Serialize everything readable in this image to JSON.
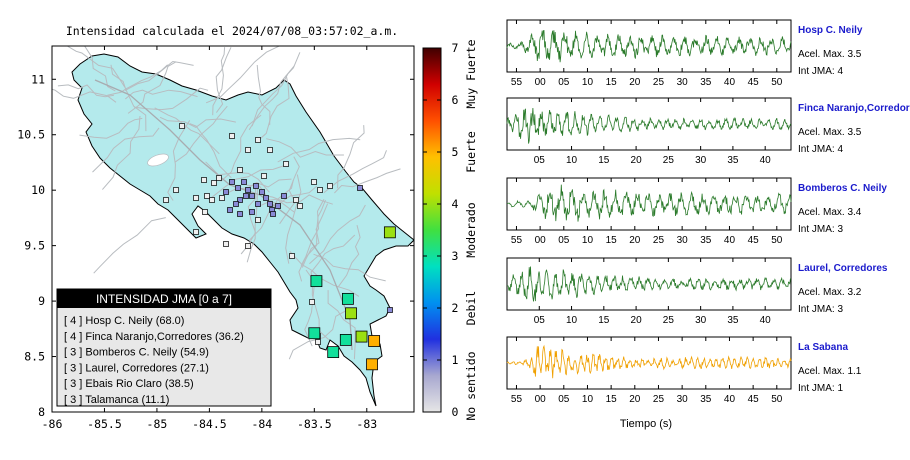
{
  "title": "Intensidad calculada el 2024/07/08_03:57:02_a.m.",
  "map": {
    "x_ticks": [
      "-86",
      "-85.5",
      "-85",
      "-84.5",
      "-84",
      "-83.5",
      "-83"
    ],
    "x_tick_values": [
      -86,
      -85.5,
      -85,
      -84.5,
      -84,
      -83.5,
      -83
    ],
    "y_ticks": [
      "11",
      "10.5",
      "10",
      "9.5",
      "9",
      "8.5",
      "8"
    ],
    "y_tick_values": [
      11,
      10.5,
      10,
      9.5,
      9,
      8.5,
      8
    ],
    "xlim": [
      -86,
      -82.55
    ],
    "ylim": [
      8,
      11.3
    ],
    "colors": {
      "land": "#b4eaec",
      "border": "#000000",
      "roads": "#b8bcc0"
    },
    "stations_big": [
      {
        "lon": -82.78,
        "lat": 9.62,
        "int": 4
      },
      {
        "lon": -83.48,
        "lat": 9.18,
        "int": 3
      },
      {
        "lon": -83.18,
        "lat": 9.02,
        "int": 3
      },
      {
        "lon": -83.15,
        "lat": 8.89,
        "int": 4
      },
      {
        "lon": -83.5,
        "lat": 8.71,
        "int": 3
      },
      {
        "lon": -83.2,
        "lat": 8.65,
        "int": 3
      },
      {
        "lon": -83.05,
        "lat": 8.68,
        "int": 4
      },
      {
        "lon": -82.93,
        "lat": 8.64,
        "int": 5
      },
      {
        "lon": -83.32,
        "lat": 8.54,
        "int": 3
      },
      {
        "lon": -82.95,
        "lat": 8.43,
        "int": 5
      }
    ]
  },
  "colorbar": {
    "min": 0,
    "max": 7,
    "ticks": [
      "0",
      "1",
      "2",
      "3",
      "4",
      "5",
      "6",
      "7"
    ],
    "labels": [
      "No sentido",
      "Debil",
      "Moderado",
      "Fuerte",
      "Muy Fuerte"
    ],
    "label_positions": [
      0.5,
      2.0,
      3.5,
      5.0,
      6.5
    ],
    "colors": [
      "#e6e6e6",
      "#a8a8d0",
      "#2030e0",
      "#0090f0",
      "#00e0c0",
      "#40e040",
      "#c0e000",
      "#ffc000",
      "#ff5000",
      "#d00000",
      "#400000"
    ]
  },
  "legend": {
    "title": "INTENSIDAD JMA [0 a 7]",
    "items": [
      {
        "text": "[ 4 ]  Hosp C. Neily (68.0)"
      },
      {
        "text": "[ 4 ]  Finca Naranjo,Corredores (36.2)"
      },
      {
        "text": "[ 3 ]  Bomberos C. Neily (54.9)"
      },
      {
        "text": "[ 3 ]  Laurel, Corredores (27.1)"
      },
      {
        "text": "[ 3 ]  Ebais Rio Claro (38.5)"
      },
      {
        "text": "[ 3 ]  Talamanca (11.1)"
      }
    ]
  },
  "chart_data": {
    "type": "line",
    "xlabel": "Tiempo (s)",
    "waveforms": [
      {
        "station": "Hosp C. Neily",
        "accel": "Acel. Max. 3.5",
        "int": "Int JMA: 4",
        "color": "#2a7a2a",
        "ticks": [
          "55",
          "00",
          "05",
          "10",
          "15",
          "20",
          "25",
          "30",
          "35",
          "40",
          "45",
          "50"
        ],
        "t0": -7,
        "t1": 53,
        "tick_start": -5,
        "peak_t": 0,
        "amp": 0.75,
        "dense": false
      },
      {
        "station": "Finca Naranjo,Corredores",
        "accel": "Acel. Max. 3.5",
        "int": "Int JMA: 4",
        "color": "#2a7a2a",
        "ticks": [
          "05",
          "10",
          "15",
          "20",
          "25",
          "30",
          "35",
          "40"
        ],
        "t0": 0,
        "t1": 44,
        "tick_start": 5,
        "peak_t": 3,
        "amp": 0.8,
        "dense": true
      },
      {
        "station": "Bomberos C. Neily",
        "accel": "Acel. Max. 3.4",
        "int": "Int JMA: 3",
        "color": "#2a7a2a",
        "ticks": [
          "55",
          "00",
          "05",
          "10",
          "15",
          "20",
          "25",
          "30",
          "35",
          "40",
          "45",
          "50"
        ],
        "t0": -7,
        "t1": 53,
        "tick_start": -5,
        "peak_t": 2,
        "amp": 0.8,
        "dense": false
      },
      {
        "station": "Laurel, Corredores",
        "accel": "Acel. Max. 3.2",
        "int": "Int JMA: 3",
        "color": "#2a7a2a",
        "ticks": [
          "05",
          "10",
          "15",
          "20",
          "25",
          "30",
          "35",
          "40"
        ],
        "t0": 0,
        "t1": 44,
        "tick_start": 5,
        "peak_t": 3,
        "amp": 0.85,
        "dense": true
      },
      {
        "station": "La Sabana",
        "accel": "Acel. Max. 1.1",
        "int": "Int JMA: 1",
        "color": "#f0a000",
        "ticks": [
          "55",
          "00",
          "05",
          "10",
          "15",
          "20",
          "25",
          "30",
          "35",
          "40",
          "45",
          "50"
        ],
        "t0": -7,
        "t1": 53,
        "tick_start": -5,
        "peak_t": 0,
        "amp": 0.8,
        "dense": true
      }
    ]
  }
}
